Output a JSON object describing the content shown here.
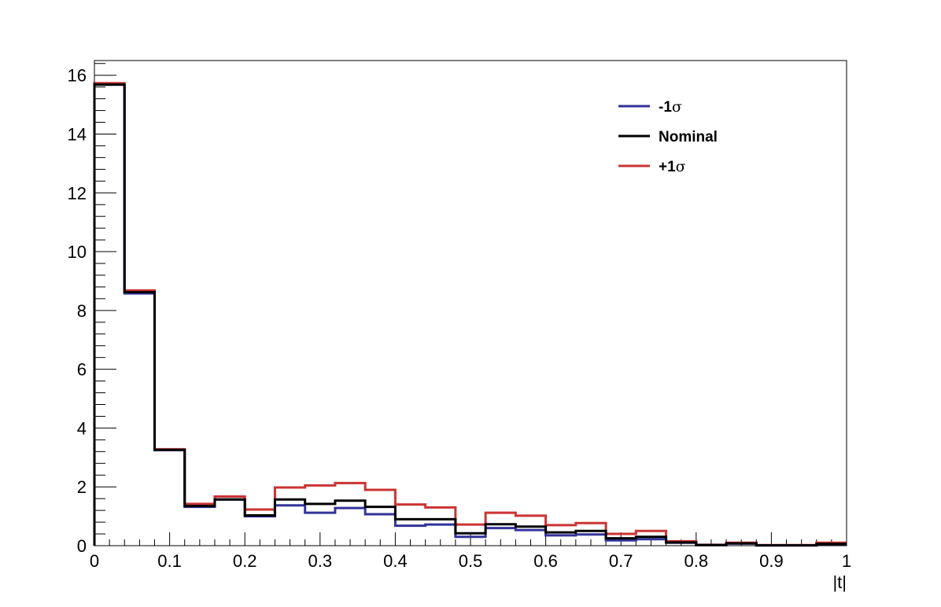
{
  "chart_data": {
    "type": "line",
    "subtype": "step-histogram",
    "title": "",
    "xlabel": "|t|",
    "ylabel": "",
    "xlim": [
      0,
      1
    ],
    "ylim": [
      0,
      16.5
    ],
    "x_ticks": [
      0,
      0.1,
      0.2,
      0.3,
      0.4,
      0.5,
      0.6,
      0.7,
      0.8,
      0.9,
      1
    ],
    "x_tick_labels": [
      "0",
      "0.1",
      "0.2",
      "0.3",
      "0.4",
      "0.5",
      "0.6",
      "0.7",
      "0.8",
      "0.9",
      "1"
    ],
    "y_ticks": [
      0,
      2,
      4,
      6,
      8,
      10,
      12,
      14,
      16
    ],
    "y_tick_labels": [
      "0",
      "2",
      "4",
      "6",
      "8",
      "10",
      "12",
      "14",
      "16"
    ],
    "grid": false,
    "legend_position": "top-right",
    "bin_edges": [
      0,
      0.04,
      0.08,
      0.12,
      0.16,
      0.2,
      0.24,
      0.28,
      0.32,
      0.36,
      0.4,
      0.44,
      0.48,
      0.52,
      0.56,
      0.6,
      0.64,
      0.68,
      0.72,
      0.76,
      0.8,
      0.84,
      0.88,
      0.92,
      0.96,
      1.0
    ],
    "series": [
      {
        "name": "-1σ",
        "legend_main": "-1",
        "legend_symbol": "σ",
        "color": "#33339a",
        "values": [
          15.68,
          8.58,
          3.25,
          1.32,
          1.57,
          1.0,
          1.37,
          1.12,
          1.28,
          1.07,
          0.68,
          0.72,
          0.3,
          0.6,
          0.53,
          0.35,
          0.38,
          0.18,
          0.22,
          0.1,
          0.02,
          0.07,
          0.01,
          0.01,
          0.05
        ]
      },
      {
        "name": "Nominal",
        "legend_main": "Nominal",
        "legend_symbol": "",
        "color": "#000000",
        "values": [
          15.68,
          8.62,
          3.26,
          1.35,
          1.57,
          1.03,
          1.57,
          1.42,
          1.53,
          1.32,
          0.9,
          0.9,
          0.42,
          0.73,
          0.65,
          0.45,
          0.5,
          0.25,
          0.3,
          0.11,
          0.02,
          0.08,
          0.01,
          0.01,
          0.06
        ]
      },
      {
        "name": "+1σ",
        "legend_main": "+1",
        "legend_symbol": "σ",
        "color": "#cc3333",
        "values": [
          15.73,
          8.68,
          3.28,
          1.42,
          1.67,
          1.23,
          1.98,
          2.05,
          2.13,
          1.9,
          1.4,
          1.3,
          0.72,
          1.12,
          1.02,
          0.7,
          0.77,
          0.4,
          0.5,
          0.15,
          0.03,
          0.1,
          0.02,
          0.02,
          0.1
        ]
      }
    ]
  }
}
